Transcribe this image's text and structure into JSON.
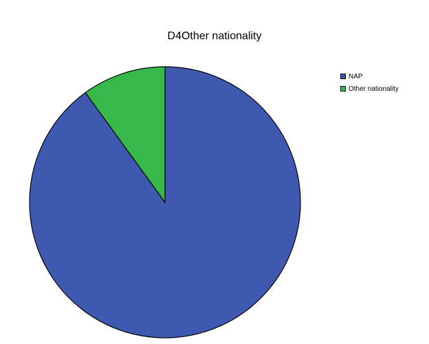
{
  "chart_data": {
    "type": "pie",
    "title": "D4Other nationality",
    "slices": [
      {
        "label": "NAP",
        "value": 90,
        "color": "#3f58b0"
      },
      {
        "label": "Other nationality",
        "value": 10,
        "color": "#37b84a"
      }
    ],
    "start_angle_deg": 0,
    "direction": "clockwise",
    "legend_position": "top-right"
  }
}
